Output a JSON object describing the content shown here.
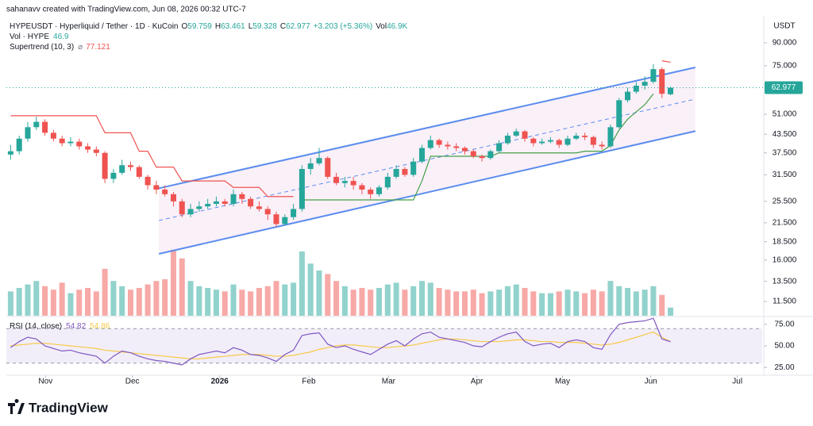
{
  "header": {
    "credit": "sahanavv created with TradingView.com, Jun 08, 2026 00:32 UTC-7",
    "symbol": "HYPEUSDT · Hyperliquid / Tether · 1D · KuCoin",
    "o": "O",
    "h": "H",
    "l": "L",
    "c": "C",
    "change": "+3.203 (+5.36%)",
    "vol": "Vol",
    "vol_value": "46.9K",
    "vol_label": "Vol · HYPE",
    "supertrend_label": "Supertrend (10, 3)",
    "supertrend_sym": "⌀",
    "rsi_label": "RSI (14, close)",
    "currency": "USDT",
    "logo": "TradingView"
  },
  "chart_data": {
    "type": "candlestick",
    "log_scale": true,
    "up_color": "#26a69a",
    "down_color": "#ef5350",
    "ylim": [
      10.27,
      111.5
    ],
    "yticks": [
      {
        "value": 90,
        "label": "90.000"
      },
      {
        "value": 75,
        "label": "75.000"
      },
      {
        "value": 51,
        "label": "51.000"
      },
      {
        "value": 43.5,
        "label": "43.500"
      },
      {
        "value": 37.5,
        "label": "37.500"
      },
      {
        "value": 31.5,
        "label": "31.500"
      },
      {
        "value": 25.5,
        "label": "25.500"
      },
      {
        "value": 21.5,
        "label": "21.500"
      },
      {
        "value": 18.5,
        "label": "18.500"
      },
      {
        "value": 16,
        "label": "16.000"
      },
      {
        "value": 13.5,
        "label": "13.500"
      },
      {
        "value": 11.5,
        "label": "11.500"
      }
    ],
    "xlim": [
      -0.5,
      87.7
    ],
    "xticks": [
      {
        "value": 4.07,
        "label": "Nov"
      },
      {
        "value": 14.2,
        "label": "Dec"
      },
      {
        "value": 24.4,
        "label": "2026"
      },
      {
        "value": 34.8,
        "label": "Feb"
      },
      {
        "value": 44.1,
        "label": "Mar"
      },
      {
        "value": 54.4,
        "label": "Apr"
      },
      {
        "value": 64.4,
        "label": "May"
      },
      {
        "value": 74.7,
        "label": "Jun"
      },
      {
        "value": 84.8,
        "label": "Jul"
      }
    ],
    "open": [
      37,
      38,
      42,
      46,
      48,
      44,
      42,
      40.5,
      41,
      39.5,
      38.5,
      37.5,
      30.5,
      32,
      34,
      33.5,
      31,
      29,
      28,
      27,
      25.5,
      23,
      24,
      24.5,
      25,
      25.5,
      25,
      27,
      26,
      24.5,
      24,
      23,
      21.3,
      22.5,
      24,
      33,
      34.5,
      36,
      31,
      29.5,
      30,
      29,
      28,
      27,
      28.5,
      31,
      33,
      31.5,
      35,
      39,
      41.5,
      40,
      39.5,
      39,
      38,
      36.5,
      36,
      38,
      40.5,
      43,
      44.5,
      42,
      40.5,
      41,
      41.5,
      40,
      42,
      43,
      42.5,
      40,
      39.5,
      46,
      57,
      61,
      64,
      66,
      73,
      59.759
    ],
    "high": [
      40,
      43,
      48,
      50,
      49,
      45,
      43,
      42.5,
      42,
      40.5,
      39.5,
      38,
      33,
      35.5,
      35,
      34,
      31.5,
      30,
      29,
      27.5,
      26,
      25,
      25.5,
      26,
      26.5,
      26,
      28,
      27.5,
      26.5,
      25.5,
      24.5,
      23.5,
      23,
      25,
      34,
      36,
      39,
      36.5,
      32,
      31,
      31,
      29.5,
      28.5,
      29,
      32,
      34,
      33.5,
      36,
      40,
      43,
      42,
      41,
      40.5,
      39.5,
      38.5,
      37,
      38.5,
      41.5,
      44,
      45.5,
      45,
      42.5,
      42,
      42.5,
      42,
      43,
      44,
      44,
      43,
      41,
      47,
      58,
      63,
      66,
      69,
      76,
      74,
      63.461
    ],
    "low": [
      35.5,
      37,
      41,
      45,
      43,
      41,
      39.5,
      39.5,
      38.5,
      37.5,
      36.5,
      29.5,
      29.5,
      31.5,
      32.5,
      30.5,
      28,
      27,
      26.5,
      24.5,
      22.5,
      22.5,
      23.5,
      24,
      24.5,
      24.5,
      24.5,
      25,
      24,
      23.5,
      22,
      20.8,
      21,
      22,
      23.5,
      31.5,
      34,
      30.5,
      29,
      28.5,
      28,
      27,
      26,
      26.5,
      28,
      30.5,
      31,
      31,
      34.5,
      38.5,
      39,
      38.5,
      38,
      37,
      36,
      35,
      35.5,
      37.5,
      40,
      42.5,
      41,
      39.5,
      40,
      40.5,
      39,
      39.5,
      41.5,
      41.5,
      39,
      38.5,
      39,
      45.5,
      56,
      60,
      62,
      65,
      58,
      59.328
    ],
    "close": [
      38,
      42,
      46,
      48,
      44,
      42,
      40.5,
      41,
      39.5,
      38.5,
      37.5,
      30.5,
      32,
      34,
      33.5,
      31,
      29,
      28,
      27,
      25.5,
      23,
      24,
      24.5,
      25,
      25.5,
      25,
      27,
      26,
      24.5,
      24,
      23,
      21.3,
      22.5,
      24,
      33,
      34.5,
      36,
      31,
      29.5,
      30,
      29,
      28,
      27,
      28.5,
      31,
      33,
      31.5,
      35,
      39,
      41.5,
      40,
      39.5,
      39,
      38,
      36.5,
      36,
      38,
      40.5,
      43,
      44.5,
      42,
      40.5,
      41,
      41.5,
      40,
      42,
      43,
      42.5,
      40,
      39.5,
      46,
      57,
      61,
      64,
      66,
      73,
      60,
      62.977
    ],
    "volume": [
      140,
      160,
      180,
      200,
      170,
      150,
      190,
      130,
      150,
      160,
      140,
      270,
      200,
      170,
      150,
      160,
      180,
      200,
      210,
      380,
      330,
      200,
      170,
      160,
      150,
      140,
      180,
      150,
      140,
      160,
      170,
      200,
      180,
      190,
      370,
      300,
      260,
      240,
      200,
      170,
      150,
      160,
      150,
      160,
      180,
      190,
      150,
      170,
      200,
      190,
      160,
      150,
      140,
      140,
      150,
      130,
      140,
      150,
      170,
      180,
      160,
      140,
      130,
      130,
      140,
      150,
      140,
      130,
      150,
      140,
      200,
      170,
      160,
      140,
      150,
      170,
      120,
      46.9
    ],
    "volume_ylim": [
      0,
      420
    ],
    "supertrend_down": [
      50.4,
      50.4,
      50.4,
      50.4,
      50.4,
      50.4,
      50.4,
      50.4,
      50.4,
      50.4,
      50.4,
      44,
      44,
      44,
      44,
      38,
      38,
      33.5,
      33.5,
      33.5,
      30,
      30,
      30,
      30,
      30,
      30,
      28.5,
      28.5,
      28.5,
      28.5,
      26.5,
      26.5,
      26.5,
      26.5,
      null,
      null,
      null,
      null,
      null,
      null,
      null,
      null,
      null,
      null,
      null,
      null,
      null,
      null,
      null,
      null,
      null,
      null,
      null,
      null,
      null,
      null,
      null,
      null,
      null,
      null,
      null,
      null,
      null,
      null,
      null,
      null,
      null,
      null,
      null,
      null,
      null,
      null,
      null,
      null,
      null,
      null,
      78,
      77.121
    ],
    "supertrend_up": [
      null,
      null,
      null,
      null,
      null,
      null,
      null,
      null,
      null,
      null,
      null,
      null,
      null,
      null,
      null,
      null,
      null,
      null,
      null,
      null,
      null,
      null,
      null,
      null,
      null,
      null,
      null,
      null,
      null,
      null,
      null,
      null,
      null,
      null,
      25.8,
      25.8,
      25.8,
      25.8,
      25.8,
      25.8,
      25.8,
      25.8,
      25.8,
      25.8,
      25.8,
      25.8,
      25.8,
      25.8,
      30,
      36.5,
      36.5,
      36.5,
      36.5,
      36.5,
      36.5,
      36.5,
      36.5,
      37.5,
      37.5,
      37.5,
      37.5,
      37.5,
      37.5,
      37.5,
      37.5,
      37.5,
      37.5,
      38,
      38,
      38,
      39.8,
      45,
      49,
      52,
      55,
      60,
      null,
      null
    ],
    "drawings": [
      {
        "x": [
          17.3,
          79.9
        ],
        "y": [
          28.3,
          74
        ]
      },
      {
        "x": [
          17.3,
          79.9
        ],
        "y": [
          16.8,
          44.6
        ]
      },
      {
        "x": [
          17.3,
          79.9
        ],
        "y": [
          21.9,
          57.5
        ]
      }
    ],
    "rsi": [
      48,
      55,
      60,
      58,
      50,
      47,
      44,
      45,
      42,
      40,
      38,
      30,
      38,
      44,
      42,
      38,
      35,
      33,
      32,
      30,
      28,
      35,
      40,
      42,
      44,
      42,
      48,
      45,
      40,
      39,
      36,
      32,
      40,
      45,
      62,
      64,
      65,
      52,
      48,
      50,
      46,
      43,
      40,
      46,
      52,
      56,
      50,
      58,
      64,
      66,
      60,
      58,
      56,
      54,
      50,
      49,
      55,
      60,
      64,
      66,
      55,
      50,
      52,
      53,
      48,
      55,
      57,
      55,
      48,
      46,
      63,
      75,
      77,
      78,
      79,
      82,
      58,
      54.82
    ],
    "rsi_ma": [
      50,
      51,
      52,
      53,
      53,
      52,
      51,
      50,
      49,
      48,
      47,
      45,
      44,
      43,
      42,
      41,
      40,
      39,
      38,
      37,
      36,
      35,
      35,
      36,
      37,
      38,
      39,
      40,
      40,
      40,
      39,
      38,
      38,
      39,
      41,
      43,
      46,
      48,
      50,
      51,
      51,
      50,
      49,
      48,
      48,
      49,
      50,
      51,
      53,
      55,
      57,
      58,
      58,
      57,
      56,
      55,
      55,
      55,
      56,
      57,
      57,
      56,
      55,
      55,
      54,
      54,
      54,
      53,
      52,
      51,
      52,
      54,
      57,
      60,
      63,
      66,
      60,
      54.86
    ],
    "rsi_ylim": [
      16,
      84
    ],
    "rsi_yticks": [
      {
        "value": 75,
        "label": "75.00"
      },
      {
        "value": 50,
        "label": "50.00"
      },
      {
        "value": 25,
        "label": "25.00"
      }
    ],
    "rsi_band": [
      30,
      70
    ]
  }
}
